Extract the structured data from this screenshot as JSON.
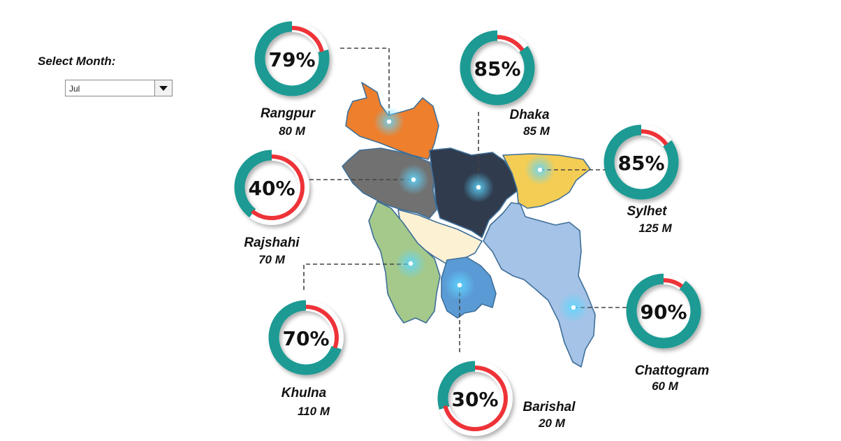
{
  "controls": {
    "select_month_label": "Select Month:",
    "month_value": "Jul",
    "dropdown_icon": "chevron-down-icon"
  },
  "colors": {
    "ring_base": "#1a9a93",
    "ring_progress": "#ee3338",
    "rangpur": "#ee7f2d",
    "rajshahi": "#717171",
    "dhaka": "#303b4d",
    "sylhet": "#f4cd54",
    "mymensingh_area": "#fdf1d4",
    "khulna": "#a4c98a",
    "barishal": "#5b9bd5",
    "chattogram": "#a5c3e6"
  },
  "chart_data": {
    "type": "donut",
    "series": [
      {
        "name": "Rangpur",
        "percent": 79,
        "value_label": "80 M",
        "value_millions": 80
      },
      {
        "name": "Dhaka",
        "percent": 85,
        "value_label": "85 M",
        "value_millions": 85
      },
      {
        "name": "Sylhet",
        "percent": 85,
        "value_label": "125 M",
        "value_millions": 125
      },
      {
        "name": "Rajshahi",
        "percent": 40,
        "value_label": "70 M",
        "value_millions": 70
      },
      {
        "name": "Khulna",
        "percent": 70,
        "value_label": "110 M",
        "value_millions": 110
      },
      {
        "name": "Barishal",
        "percent": 30,
        "value_label": "20 M",
        "value_millions": 20
      },
      {
        "name": "Chattogram",
        "percent": 90,
        "value_label": "60 M",
        "value_millions": 60
      }
    ]
  }
}
